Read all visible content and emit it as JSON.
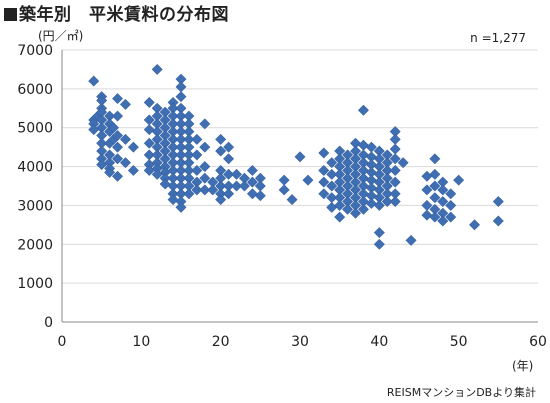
{
  "header": {
    "title": "築年別　平米賃料の分布図",
    "unit_label": "(円／㎡)",
    "n_label": "n =1,277",
    "x_unit_label": "(年)",
    "source": "REISMマンションDBより集計"
  },
  "style": {
    "marker_color": "#3f6fb2",
    "grid_color": "#d9d9d9",
    "axis_color": "#888888"
  },
  "chart_data": {
    "type": "scatter",
    "title": "築年別　平米賃料の分布図",
    "xlim": [
      0,
      60
    ],
    "ylim": [
      0,
      7000
    ],
    "x_ticks": [
      "0",
      "10",
      "20",
      "30",
      "40",
      "50",
      "60"
    ],
    "y_ticks": [
      "0",
      "1000",
      "2000",
      "3000",
      "4000",
      "5000",
      "6000",
      "7000"
    ],
    "grid": {
      "horizontal": true,
      "vertical": false
    },
    "series": [
      {
        "points": [
          [
            4,
            6200
          ],
          [
            4,
            5200
          ],
          [
            4,
            5100
          ],
          [
            4,
            4950
          ],
          [
            4.5,
            5300
          ],
          [
            5,
            5500
          ],
          [
            5,
            5800
          ],
          [
            5,
            5700
          ],
          [
            5,
            5400
          ],
          [
            5,
            5200
          ],
          [
            5,
            5000
          ],
          [
            5,
            4800
          ],
          [
            5,
            4600
          ],
          [
            5,
            4400
          ],
          [
            5,
            4200
          ],
          [
            5,
            4050
          ],
          [
            6,
            5300
          ],
          [
            6,
            5100
          ],
          [
            6,
            4900
          ],
          [
            6,
            4600
          ],
          [
            6,
            4300
          ],
          [
            6,
            4100
          ],
          [
            6,
            3950
          ],
          [
            6,
            3850
          ],
          [
            6.5,
            4700
          ],
          [
            6.5,
            5000
          ],
          [
            7,
            5750
          ],
          [
            7,
            5300
          ],
          [
            7,
            4800
          ],
          [
            7,
            4500
          ],
          [
            7,
            4200
          ],
          [
            7,
            3750
          ],
          [
            8,
            5600
          ],
          [
            8,
            4700
          ],
          [
            8,
            4100
          ],
          [
            9,
            4500
          ],
          [
            9,
            3900
          ],
          [
            11,
            5650
          ],
          [
            11,
            5200
          ],
          [
            11,
            4950
          ],
          [
            11,
            4600
          ],
          [
            11,
            4300
          ],
          [
            11,
            4050
          ],
          [
            11,
            3900
          ],
          [
            12,
            6500
          ],
          [
            12,
            5500
          ],
          [
            12,
            5300
          ],
          [
            12,
            5100
          ],
          [
            12,
            4900
          ],
          [
            12,
            4700
          ],
          [
            12,
            4500
          ],
          [
            12,
            4300
          ],
          [
            12,
            4100
          ],
          [
            12,
            3950
          ],
          [
            12,
            3800
          ],
          [
            13,
            5400
          ],
          [
            13,
            5200
          ],
          [
            13,
            5000
          ],
          [
            13,
            4800
          ],
          [
            13,
            4600
          ],
          [
            13,
            4400
          ],
          [
            13,
            4200
          ],
          [
            13,
            4000
          ],
          [
            13,
            3850
          ],
          [
            13,
            3700
          ],
          [
            13,
            3550
          ],
          [
            14,
            5650
          ],
          [
            14,
            5500
          ],
          [
            14,
            5300
          ],
          [
            14,
            5100
          ],
          [
            14,
            4900
          ],
          [
            14,
            4700
          ],
          [
            14,
            4500
          ],
          [
            14,
            4300
          ],
          [
            14,
            4100
          ],
          [
            14,
            3900
          ],
          [
            14,
            3700
          ],
          [
            14,
            3500
          ],
          [
            14,
            3300
          ],
          [
            14,
            3150
          ],
          [
            15,
            6250
          ],
          [
            15,
            6050
          ],
          [
            15,
            5800
          ],
          [
            15,
            5500
          ],
          [
            15,
            5300
          ],
          [
            15,
            5100
          ],
          [
            15,
            4900
          ],
          [
            15,
            4700
          ],
          [
            15,
            4500
          ],
          [
            15,
            4300
          ],
          [
            15,
            4100
          ],
          [
            15,
            3900
          ],
          [
            15,
            3700
          ],
          [
            15,
            3500
          ],
          [
            15,
            3300
          ],
          [
            15,
            3100
          ],
          [
            15,
            2950
          ],
          [
            16,
            5300
          ],
          [
            16,
            5100
          ],
          [
            16,
            4900
          ],
          [
            16,
            4700
          ],
          [
            16,
            4500
          ],
          [
            16,
            4300
          ],
          [
            16,
            4100
          ],
          [
            16,
            3900
          ],
          [
            16,
            3700
          ],
          [
            16,
            3500
          ],
          [
            16,
            3300
          ],
          [
            17,
            4700
          ],
          [
            17,
            4300
          ],
          [
            17,
            3900
          ],
          [
            17,
            3600
          ],
          [
            17,
            3400
          ],
          [
            18,
            5100
          ],
          [
            18,
            4500
          ],
          [
            18,
            4000
          ],
          [
            18,
            3700
          ],
          [
            18,
            3400
          ],
          [
            19,
            3600
          ],
          [
            19,
            3400
          ],
          [
            20,
            4700
          ],
          [
            20,
            4400
          ],
          [
            20,
            3900
          ],
          [
            20,
            3700
          ],
          [
            20,
            3500
          ],
          [
            20,
            3300
          ],
          [
            20,
            3150
          ],
          [
            21,
            4500
          ],
          [
            21,
            4200
          ],
          [
            21,
            3800
          ],
          [
            21,
            3500
          ],
          [
            21,
            3300
          ],
          [
            22,
            3800
          ],
          [
            22,
            3500
          ],
          [
            23,
            3700
          ],
          [
            23,
            3500
          ],
          [
            24,
            3900
          ],
          [
            24,
            3600
          ],
          [
            24,
            3300
          ],
          [
            25,
            3700
          ],
          [
            25,
            3500
          ],
          [
            25,
            3250
          ],
          [
            28,
            3650
          ],
          [
            28,
            3400
          ],
          [
            29,
            3150
          ],
          [
            30,
            4250
          ],
          [
            31,
            3650
          ],
          [
            33,
            4350
          ],
          [
            33,
            3900
          ],
          [
            33,
            3600
          ],
          [
            33,
            3300
          ],
          [
            34,
            4100
          ],
          [
            34,
            3800
          ],
          [
            34,
            3500
          ],
          [
            34,
            3200
          ],
          [
            34,
            2950
          ],
          [
            35,
            4400
          ],
          [
            35,
            4200
          ],
          [
            35,
            4000
          ],
          [
            35,
            3800
          ],
          [
            35,
            3600
          ],
          [
            35,
            3400
          ],
          [
            35,
            3200
          ],
          [
            35,
            3000
          ],
          [
            35,
            2700
          ],
          [
            36,
            4300
          ],
          [
            36,
            4100
          ],
          [
            36,
            3900
          ],
          [
            36,
            3700
          ],
          [
            36,
            3500
          ],
          [
            36,
            3300
          ],
          [
            36,
            3100
          ],
          [
            36,
            2900
          ],
          [
            37,
            4600
          ],
          [
            37,
            4400
          ],
          [
            37,
            4200
          ],
          [
            37,
            4000
          ],
          [
            37,
            3800
          ],
          [
            37,
            3600
          ],
          [
            37,
            3400
          ],
          [
            37,
            3200
          ],
          [
            37,
            3000
          ],
          [
            37,
            2800
          ],
          [
            38,
            5450
          ],
          [
            38,
            4550
          ],
          [
            38,
            4300
          ],
          [
            38,
            4100
          ],
          [
            38,
            3900
          ],
          [
            38,
            3700
          ],
          [
            38,
            3500
          ],
          [
            38,
            3300
          ],
          [
            38,
            3100
          ],
          [
            38,
            2900
          ],
          [
            39,
            4500
          ],
          [
            39,
            4250
          ],
          [
            39,
            4050
          ],
          [
            39,
            3850
          ],
          [
            39,
            3650
          ],
          [
            39,
            3450
          ],
          [
            39,
            3250
          ],
          [
            39,
            3050
          ],
          [
            40,
            4400
          ],
          [
            40,
            4200
          ],
          [
            40,
            4000
          ],
          [
            40,
            3800
          ],
          [
            40,
            3600
          ],
          [
            40,
            3400
          ],
          [
            40,
            3200
          ],
          [
            40,
            3000
          ],
          [
            40,
            2300
          ],
          [
            40,
            2000
          ],
          [
            41,
            4300
          ],
          [
            41,
            4100
          ],
          [
            41,
            3900
          ],
          [
            41,
            3700
          ],
          [
            41,
            3500
          ],
          [
            41,
            3300
          ],
          [
            41,
            3100
          ],
          [
            42,
            4900
          ],
          [
            42,
            4700
          ],
          [
            42,
            4450
          ],
          [
            42,
            4200
          ],
          [
            42,
            3900
          ],
          [
            42,
            3600
          ],
          [
            42,
            3300
          ],
          [
            42,
            3100
          ],
          [
            43,
            4100
          ],
          [
            44,
            2100
          ],
          [
            46,
            3750
          ],
          [
            46,
            3400
          ],
          [
            46,
            3000
          ],
          [
            46,
            2750
          ],
          [
            47,
            4200
          ],
          [
            47,
            3800
          ],
          [
            47,
            3500
          ],
          [
            47,
            3200
          ],
          [
            47,
            2900
          ],
          [
            47,
            2700
          ],
          [
            48,
            3600
          ],
          [
            48,
            3400
          ],
          [
            48,
            3100
          ],
          [
            48,
            2800
          ],
          [
            48,
            2600
          ],
          [
            49,
            3300
          ],
          [
            49,
            3000
          ],
          [
            49,
            2700
          ],
          [
            50,
            3650
          ],
          [
            52,
            2500
          ],
          [
            55,
            3100
          ],
          [
            55,
            2600
          ]
        ]
      }
    ]
  }
}
